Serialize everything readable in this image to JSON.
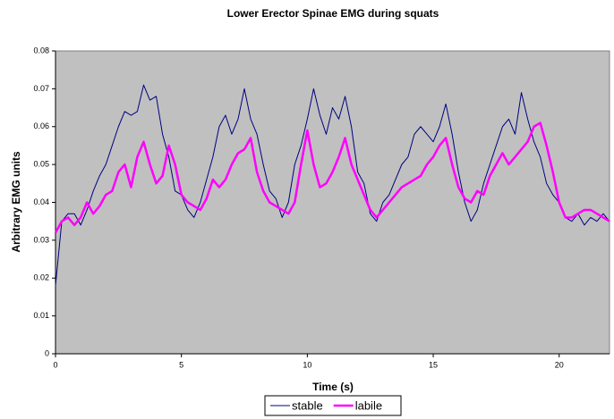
{
  "chart_data": {
    "type": "line",
    "title": "Lower Erector Spinae EMG during squats",
    "x_label": "Time (s)",
    "y_label": "Arbitrary EMG units",
    "x": [
      0,
      0.25,
      0.5,
      0.75,
      1,
      1.25,
      1.5,
      1.75,
      2,
      2.25,
      2.5,
      2.75,
      3,
      3.25,
      3.5,
      3.75,
      4,
      4.25,
      4.5,
      4.75,
      5,
      5.25,
      5.5,
      5.75,
      6,
      6.25,
      6.5,
      6.75,
      7,
      7.25,
      7.5,
      7.75,
      8,
      8.25,
      8.5,
      8.75,
      9,
      9.25,
      9.5,
      9.75,
      10,
      10.25,
      10.5,
      10.75,
      11,
      11.25,
      11.5,
      11.75,
      12,
      12.25,
      12.5,
      12.75,
      13,
      13.25,
      13.5,
      13.75,
      14,
      14.25,
      14.5,
      14.75,
      15,
      15.25,
      15.5,
      15.75,
      16,
      16.25,
      16.5,
      16.75,
      17,
      17.25,
      17.5,
      17.75,
      18,
      18.25,
      18.5,
      18.75,
      19,
      19.25,
      19.5,
      19.75,
      20,
      20.25,
      20.5,
      20.75,
      21,
      21.25,
      21.5,
      21.75,
      22
    ],
    "series": [
      {
        "name": "stable",
        "color": "#000080",
        "width": 1,
        "values": [
          0.018,
          0.035,
          0.037,
          0.037,
          0.034,
          0.038,
          0.043,
          0.047,
          0.05,
          0.055,
          0.06,
          0.064,
          0.063,
          0.064,
          0.071,
          0.067,
          0.068,
          0.058,
          0.052,
          0.043,
          0.042,
          0.038,
          0.036,
          0.04,
          0.046,
          0.052,
          0.06,
          0.063,
          0.058,
          0.062,
          0.07,
          0.062,
          0.058,
          0.05,
          0.043,
          0.041,
          0.036,
          0.04,
          0.05,
          0.055,
          0.062,
          0.07,
          0.063,
          0.058,
          0.065,
          0.062,
          0.068,
          0.06,
          0.048,
          0.045,
          0.037,
          0.035,
          0.04,
          0.042,
          0.046,
          0.05,
          0.052,
          0.058,
          0.06,
          0.058,
          0.056,
          0.06,
          0.066,
          0.058,
          0.048,
          0.04,
          0.035,
          0.038,
          0.045,
          0.05,
          0.055,
          0.06,
          0.062,
          0.058,
          0.069,
          0.062,
          0.056,
          0.052,
          0.045,
          0.042,
          0.04,
          0.036,
          0.035,
          0.037,
          0.034,
          0.036,
          0.035,
          0.037,
          0.035
        ]
      },
      {
        "name": "labile",
        "color": "#ff00ff",
        "width": 2.5,
        "values": [
          0.032,
          0.035,
          0.036,
          0.034,
          0.036,
          0.04,
          0.037,
          0.039,
          0.042,
          0.043,
          0.048,
          0.05,
          0.044,
          0.052,
          0.056,
          0.05,
          0.045,
          0.047,
          0.055,
          0.05,
          0.042,
          0.04,
          0.039,
          0.038,
          0.041,
          0.046,
          0.044,
          0.046,
          0.05,
          0.053,
          0.054,
          0.057,
          0.048,
          0.043,
          0.04,
          0.039,
          0.038,
          0.037,
          0.04,
          0.05,
          0.059,
          0.05,
          0.044,
          0.045,
          0.048,
          0.052,
          0.057,
          0.05,
          0.046,
          0.042,
          0.038,
          0.036,
          0.038,
          0.04,
          0.042,
          0.044,
          0.045,
          0.046,
          0.047,
          0.05,
          0.052,
          0.055,
          0.057,
          0.05,
          0.044,
          0.041,
          0.04,
          0.043,
          0.042,
          0.047,
          0.05,
          0.053,
          0.05,
          0.052,
          0.054,
          0.056,
          0.06,
          0.061,
          0.055,
          0.048,
          0.04,
          0.036,
          0.036,
          0.037,
          0.038,
          0.038,
          0.037,
          0.036,
          0.035
        ]
      }
    ],
    "xlim": [
      0,
      22
    ],
    "xticks": [
      0,
      5,
      10,
      15,
      20
    ],
    "ylim": [
      0,
      0.08
    ],
    "yticks": [
      0,
      0.01,
      0.02,
      0.03,
      0.04,
      0.05,
      0.06,
      0.07,
      0.08
    ],
    "background": "#c0c0c0"
  }
}
